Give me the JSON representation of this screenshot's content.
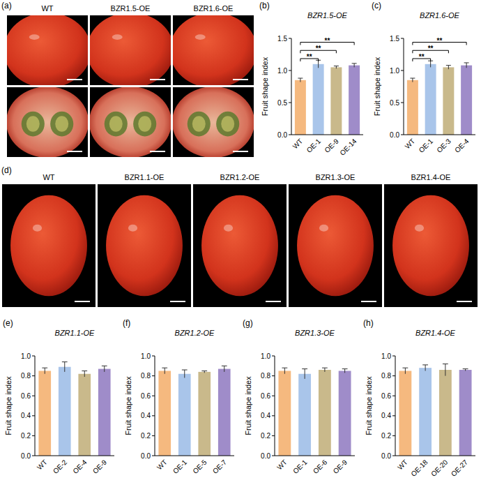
{
  "photo_panels": [
    {
      "label": "(a)",
      "captions": [
        "WT",
        "BZR1.5-OE",
        "BZR1.6-OE"
      ]
    },
    {
      "label": "(d)",
      "captions": [
        "WT",
        "BZR1.1-OE",
        "BZR1.2-OE",
        "BZR1.3-OE",
        "BZR1.4-OE"
      ]
    }
  ],
  "chart_data": [
    {
      "type": "bar",
      "label": "(b)",
      "title": "BZR1.5-OE",
      "y_label": "Fruit shape index",
      "categories": [
        "WT",
        "OE-1",
        "OE-9",
        "OE-14"
      ],
      "values": [
        0.85,
        1.1,
        1.05,
        1.08
      ],
      "errors": [
        0.03,
        0.06,
        0.02,
        0.03
      ],
      "colors": [
        "#f5b97f",
        "#a9c5ea",
        "#c9b98b",
        "#9f8cc9"
      ],
      "ylim": [
        0,
        1.5
      ],
      "yticks": [
        {
          "value": 0,
          "label": "0.0"
        },
        0.5,
        {
          "value": 1,
          "label": "1.0"
        },
        1.5
      ],
      "annotations": [
        {
          "text": "**",
          "from": "WT",
          "to": "OE-1"
        },
        {
          "text": "**",
          "from": "WT",
          "to": "OE-9"
        },
        {
          "text": "**",
          "from": "WT",
          "to": "OE-14"
        }
      ]
    },
    {
      "type": "bar",
      "label": "(c)",
      "title": "BZR1.6-OE",
      "y_label": "Fruit shape index",
      "categories": [
        "WT",
        "OE-1",
        "OE-3",
        "OE-4"
      ],
      "values": [
        0.85,
        1.1,
        1.05,
        1.08
      ],
      "errors": [
        0.03,
        0.05,
        0.03,
        0.04
      ],
      "colors": [
        "#f5b97f",
        "#a9c5ea",
        "#c9b98b",
        "#9f8cc9"
      ],
      "ylim": [
        0,
        1.5
      ],
      "yticks": [
        {
          "value": 0,
          "label": "0.0"
        },
        0.5,
        {
          "value": 1,
          "label": "1.0"
        },
        1.5
      ],
      "annotations": [
        {
          "text": "**",
          "from": "WT",
          "to": "OE-1"
        },
        {
          "text": "**",
          "from": "WT",
          "to": "OE-3"
        },
        {
          "text": "**",
          "from": "WT",
          "to": "OE-4"
        }
      ]
    },
    {
      "type": "bar",
      "label": "(e)",
      "title": "BZR1.1-OE",
      "y_label": "Fruit shape index",
      "categories": [
        "WT",
        "OE-2",
        "OE-4",
        "OE-9"
      ],
      "values": [
        0.85,
        0.89,
        0.82,
        0.87
      ],
      "errors": [
        0.03,
        0.05,
        0.03,
        0.03
      ],
      "colors": [
        "#f5b97f",
        "#a9c5ea",
        "#c9b98b",
        "#9f8cc9"
      ],
      "ylim": [
        0,
        1
      ],
      "yticks": [
        {
          "value": 0,
          "label": "0.0"
        },
        0.2,
        0.4,
        0.6,
        0.8,
        {
          "value": 1,
          "label": "1.0"
        }
      ]
    },
    {
      "type": "bar",
      "label": "(f)",
      "title": "BZR1.2-OE",
      "y_label": "Fruit shape index",
      "categories": [
        "WT",
        "OE-1",
        "OE-5",
        "OE-7"
      ],
      "values": [
        0.85,
        0.82,
        0.84,
        0.87
      ],
      "errors": [
        0.03,
        0.04,
        0.01,
        0.03
      ],
      "colors": [
        "#f5b97f",
        "#a9c5ea",
        "#c9b98b",
        "#9f8cc9"
      ],
      "ylim": [
        0,
        1
      ],
      "yticks": [
        {
          "value": 0,
          "label": "0.0"
        },
        0.2,
        0.4,
        0.6,
        0.8,
        {
          "value": 1,
          "label": "1.0"
        }
      ]
    },
    {
      "type": "bar",
      "label": "(g)",
      "title": "BZR1.3-OE",
      "y_label": "Fruit shape index",
      "categories": [
        "WT",
        "OE-1",
        "OE-6",
        "OE-9"
      ],
      "values": [
        0.85,
        0.82,
        0.86,
        0.85
      ],
      "errors": [
        0.03,
        0.05,
        0.02,
        0.02
      ],
      "colors": [
        "#f5b97f",
        "#a9c5ea",
        "#c9b98b",
        "#9f8cc9"
      ],
      "ylim": [
        0,
        1
      ],
      "yticks": [
        {
          "value": 0,
          "label": "0.0"
        },
        0.2,
        0.4,
        0.6,
        0.8,
        {
          "value": 1,
          "label": "1.0"
        }
      ]
    },
    {
      "type": "bar",
      "label": "(h)",
      "title": "BZR1.4-OE",
      "y_label": "Fruit shape index",
      "categories": [
        "WT",
        "OE-18",
        "OE-20",
        "OE-27"
      ],
      "values": [
        0.85,
        0.88,
        0.86,
        0.86
      ],
      "errors": [
        0.03,
        0.03,
        0.06,
        0.01
      ],
      "colors": [
        "#f5b97f",
        "#a9c5ea",
        "#c9b98b",
        "#9f8cc9"
      ],
      "ylim": [
        0,
        1
      ],
      "yticks": [
        {
          "value": 0,
          "label": "0.0"
        },
        0.2,
        0.4,
        0.6,
        0.8,
        {
          "value": 1,
          "label": "1.0"
        }
      ]
    }
  ]
}
